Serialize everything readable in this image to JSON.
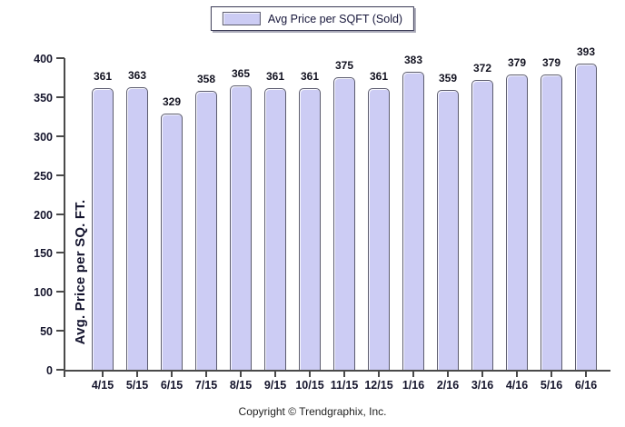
{
  "legend": {
    "label": "Avg Price per SQFT (Sold)"
  },
  "footer": {
    "copyright": "Copyright © Trendgraphix, Inc."
  },
  "colors": {
    "bar_fill": "#ccccf4",
    "bar_border": "#5c5c6e",
    "axis": "#4a4a4a",
    "text": "#15152c"
  },
  "chart_data": {
    "type": "bar",
    "title": "",
    "categories": [
      "4/15",
      "5/15",
      "6/15",
      "7/15",
      "8/15",
      "9/15",
      "10/15",
      "11/15",
      "12/15",
      "1/16",
      "2/16",
      "3/16",
      "4/16",
      "5/16",
      "6/16"
    ],
    "values": [
      361,
      363,
      329,
      358,
      365,
      361,
      361,
      375,
      361,
      383,
      359,
      372,
      379,
      379,
      393
    ],
    "xlabel": "",
    "ylabel": "Avg. Price per SQ. FT.",
    "ylim": [
      0,
      400
    ],
    "yticks": [
      0,
      50,
      100,
      150,
      200,
      250,
      300,
      350,
      400
    ],
    "grid": false,
    "bar_value_labels": true,
    "legend_entries": [
      "Avg Price per SQFT (Sold)"
    ],
    "legend_position": "top-center"
  }
}
